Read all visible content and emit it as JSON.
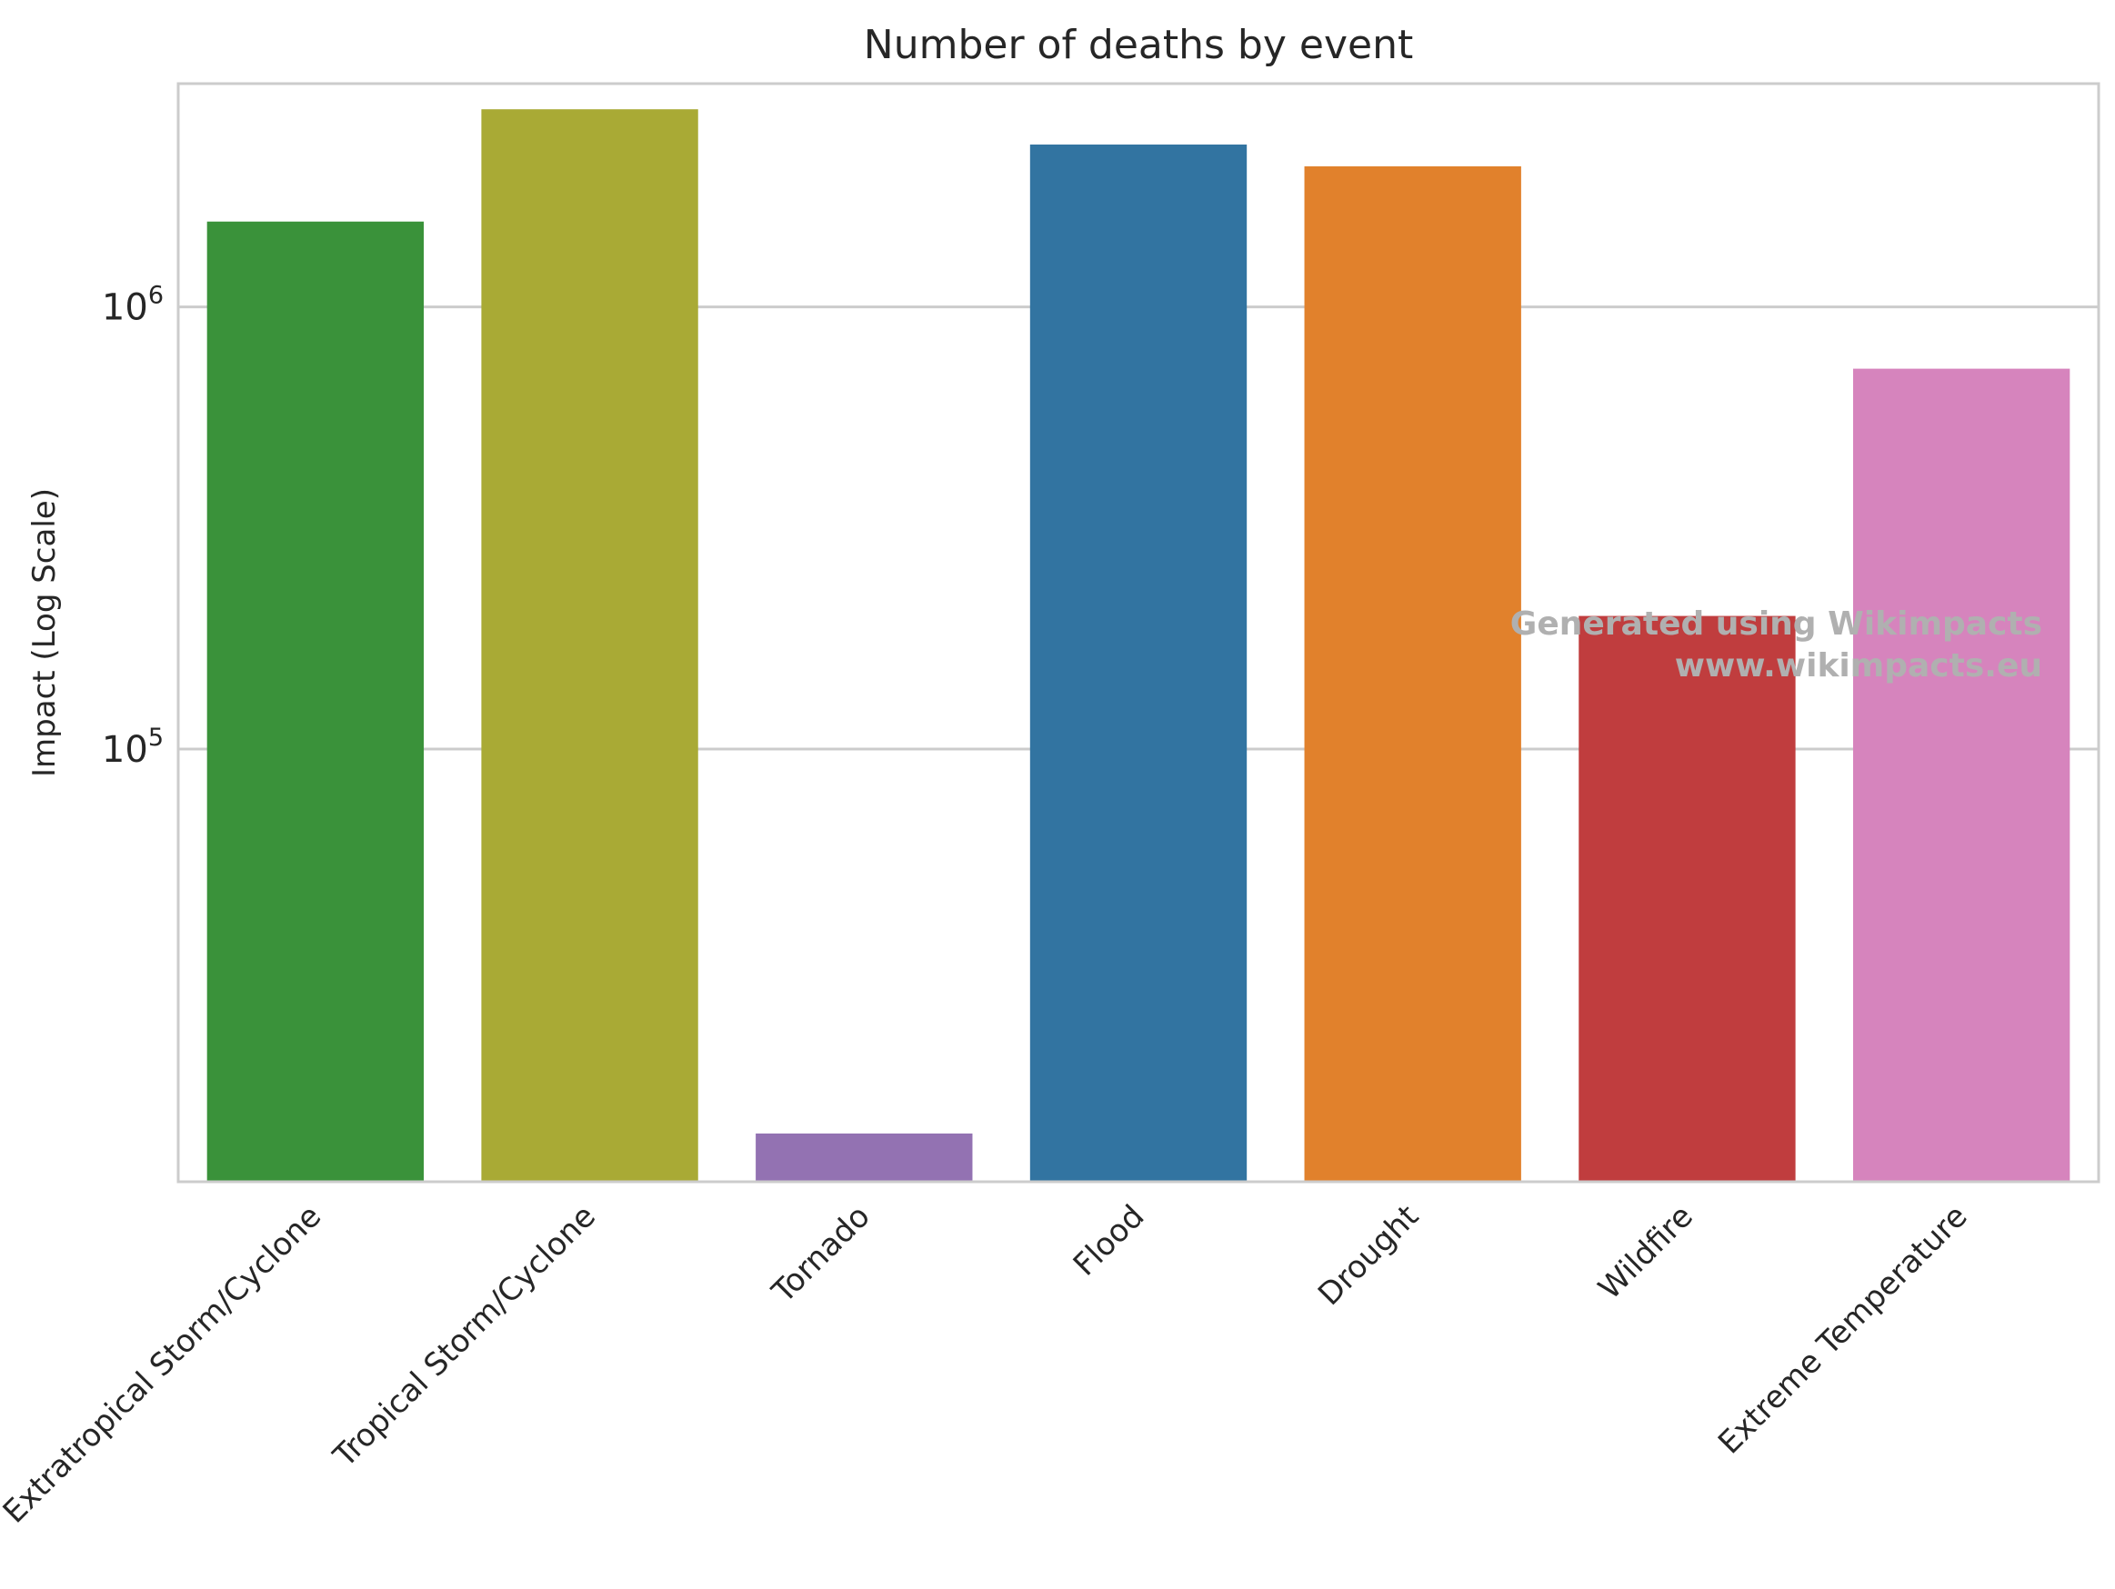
{
  "chart_data": {
    "type": "bar",
    "title": "Number of deaths by event",
    "xlabel": "",
    "ylabel": "Impact (Log Scale)",
    "yscale": "log",
    "ylim": [
      10500,
      3200000
    ],
    "grid": "y",
    "categories": [
      "Extratropical Storm/Cyclone",
      "Tropical Storm/Cyclone",
      "Tornado",
      "Flood",
      "Drought",
      "Wildfire",
      "Extreme Temperature"
    ],
    "values": [
      1560000,
      2800000,
      13500,
      2330000,
      2080000,
      200000,
      725000
    ],
    "colors": [
      "#3a923a",
      "#a9aa35",
      "#9372b2",
      "#3274a1",
      "#e1812c",
      "#c03d3e",
      "#d684bd"
    ],
    "yticks": [
      {
        "value": 100000,
        "base": "10",
        "exp": "5"
      },
      {
        "value": 1000000,
        "base": "10",
        "exp": "6"
      }
    ]
  },
  "watermark": {
    "line1": "Generated using Wikimpacts",
    "line2": "www.wikimpacts.eu"
  }
}
